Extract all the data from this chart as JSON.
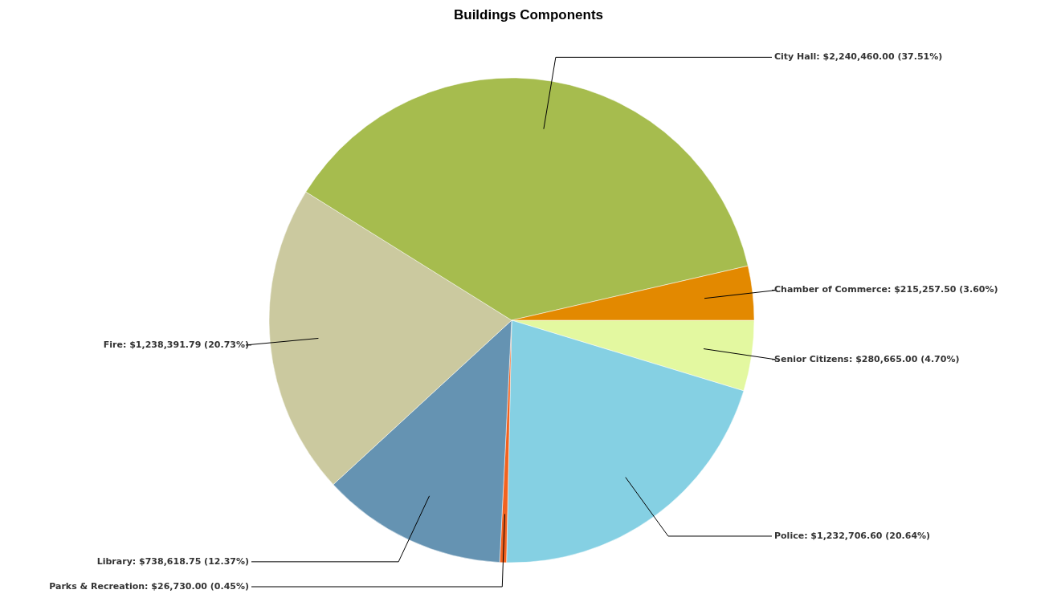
{
  "chart_data": {
    "type": "pie",
    "title": "Buildings Components",
    "categories": [
      "Senior Citizens",
      "Police",
      "Parks & Recreation",
      "Library",
      "Fire",
      "City Hall",
      "Chamber of Commerce"
    ],
    "values": [
      280665.0,
      1232706.6,
      26730.0,
      738618.75,
      1238391.79,
      2240460.0,
      215257.5
    ],
    "value_labels": [
      "$280,665.00 (4.70%)",
      "$1,232,706.60 (20.64%)",
      "$26,730.00 (0.45%)",
      "$738,618.75 (12.37%)",
      "$1,238,391.79 (20.73%)",
      "$2,240,460.00 (37.51%)",
      "$215,257.50 (3.60%)"
    ],
    "colors": [
      "#e3f8a0",
      "#85d0e3",
      "#f2621f",
      "#6593b2",
      "#cbc99f",
      "#a6bc4e",
      "#e38900"
    ],
    "legend": false
  }
}
